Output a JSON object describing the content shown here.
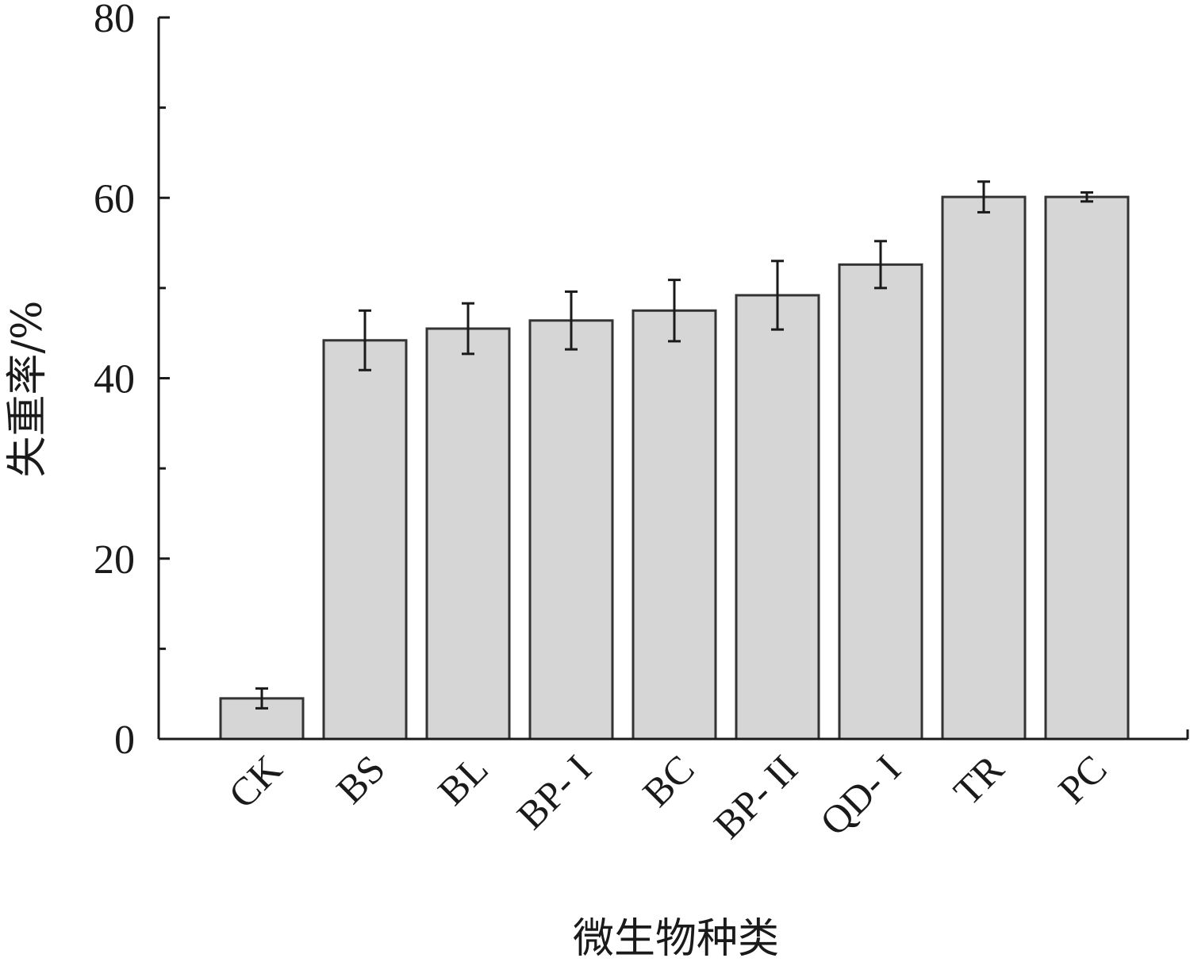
{
  "chart_data": {
    "type": "bar",
    "title": "",
    "xlabel": "微生物种类",
    "ylabel": "失重率/%",
    "categories": [
      "CK",
      "BS",
      "BL",
      "BP- I",
      "BC",
      "BP- II",
      "QD- I",
      "TR",
      "PC"
    ],
    "values": [
      4.5,
      44.2,
      45.5,
      46.4,
      47.5,
      49.2,
      52.6,
      60.1,
      60.1
    ],
    "errors": [
      1.1,
      3.3,
      2.8,
      3.2,
      3.4,
      3.8,
      2.6,
      1.7,
      0.5
    ],
    "ylim": [
      0,
      80
    ],
    "yticks": [
      0,
      20,
      40,
      60,
      80
    ],
    "y_minor_ticks": [
      10,
      30,
      50,
      70
    ],
    "grid": false,
    "legend": "none",
    "bar_color": "#d6d6d6",
    "edge_color": "#333333"
  }
}
